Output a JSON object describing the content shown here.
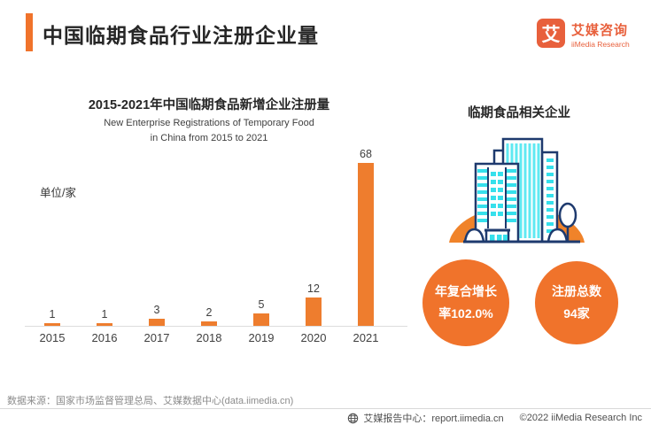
{
  "colors": {
    "accent_orange": "#F0732B",
    "bar_orange": "#EE7D2E",
    "logo_orange": "#E8603C",
    "illustration_cyan": "#36E0EC",
    "illustration_cyan_light": "#8FEFF6",
    "illustration_navy": "#1E3A6E",
    "axis_gray": "#DDDDDD"
  },
  "header": {
    "title": "中国临期食品行业注册企业量",
    "logo": {
      "mark": "艾",
      "name_cn": "艾媒咨询",
      "name_en": "iiMedia Research"
    }
  },
  "chart": {
    "title": "2015-2021年中国临期食品新增企业注册量",
    "subtitle_line1": "New Enterprise Registrations of Temporary Food",
    "subtitle_line2": "in China from 2015 to 2021",
    "unit_label": "单位/家"
  },
  "chart_data": {
    "type": "bar",
    "title": "2015-2021年中国临期食品新增企业注册量",
    "subtitle": "New Enterprise Registrations of Temporary Food in China from 2015 to 2021",
    "categories": [
      "2015",
      "2016",
      "2017",
      "2018",
      "2019",
      "2020",
      "2021"
    ],
    "values": [
      1,
      1,
      3,
      2,
      5,
      12,
      68
    ],
    "xlabel": "",
    "ylabel": "单位/家",
    "ylim": [
      0,
      70
    ],
    "grid": false,
    "data_labels": true,
    "legend": "none",
    "bar_color": "#EE7D2E"
  },
  "right_panel": {
    "heading": "临期食品相关企业",
    "illustration": "office-buildings",
    "stat_circles": [
      {
        "line1": "年复合增长",
        "line2": "率102.0%"
      },
      {
        "line1": "注册总数",
        "line2": "94家"
      }
    ]
  },
  "footer": {
    "source": "数据来源：国家市场监督管理总局、艾媒数据中心(data.iimedia.cn)",
    "report_center": "艾媒报告中心：report.iimedia.cn",
    "copyright": "©2022  iiMedia Research  Inc"
  }
}
